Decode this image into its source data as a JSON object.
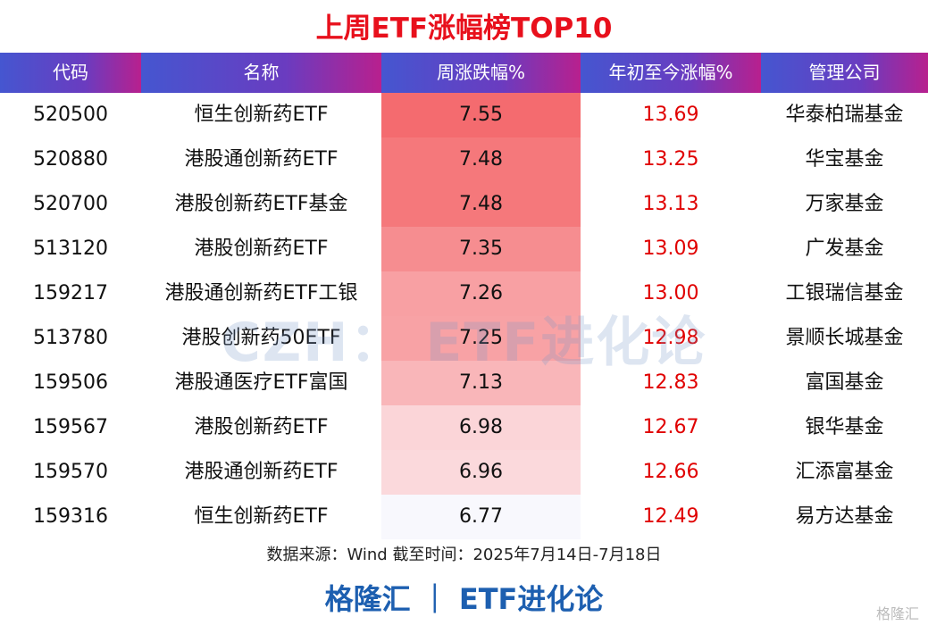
{
  "title": "上周ETF涨幅榜TOP10",
  "table": {
    "header": [
      "代码",
      "名称",
      "周涨跌幅%",
      "年初至今涨幅%",
      "管理公司"
    ],
    "rows": [
      [
        "520500",
        "恒生创新药ETF",
        "7.55",
        "13.69",
        "华泰柏瑞基金"
      ],
      [
        "520880",
        "港股通创新药ETF",
        "7.48",
        "13.25",
        "华宝基金"
      ],
      [
        "520700",
        "港股创新药ETF基金",
        "7.48",
        "13.13",
        "万家基金"
      ],
      [
        "513120",
        "港股创新药ETF",
        "7.35",
        "13.09",
        "广发基金"
      ],
      [
        "159217",
        "港股通创新药ETF工银",
        "7.26",
        "13.00",
        "工银瑞信基金"
      ],
      [
        "513780",
        "港股创新药50ETF",
        "7.25",
        "12.98",
        "景顺长城基金"
      ],
      [
        "159506",
        "港股通医疗ETF富国",
        "7.13",
        "12.83",
        "富国基金"
      ],
      [
        "159567",
        "港股创新药ETF",
        "6.98",
        "12.67",
        "银华基金"
      ],
      [
        "159570",
        "港股通创新药ETF",
        "6.96",
        "12.66",
        "汇添富基金"
      ],
      [
        "159316",
        "恒生创新药ETF",
        "6.77",
        "12.49",
        "易方达基金"
      ]
    ]
  },
  "source": "数据来源：Wind 截至时间：2025年7月14日-7月18日",
  "brand": "格隆汇 ｜ ETF进化论",
  "watermark": "CZH： ETF进化论",
  "logo": "格隆汇"
}
